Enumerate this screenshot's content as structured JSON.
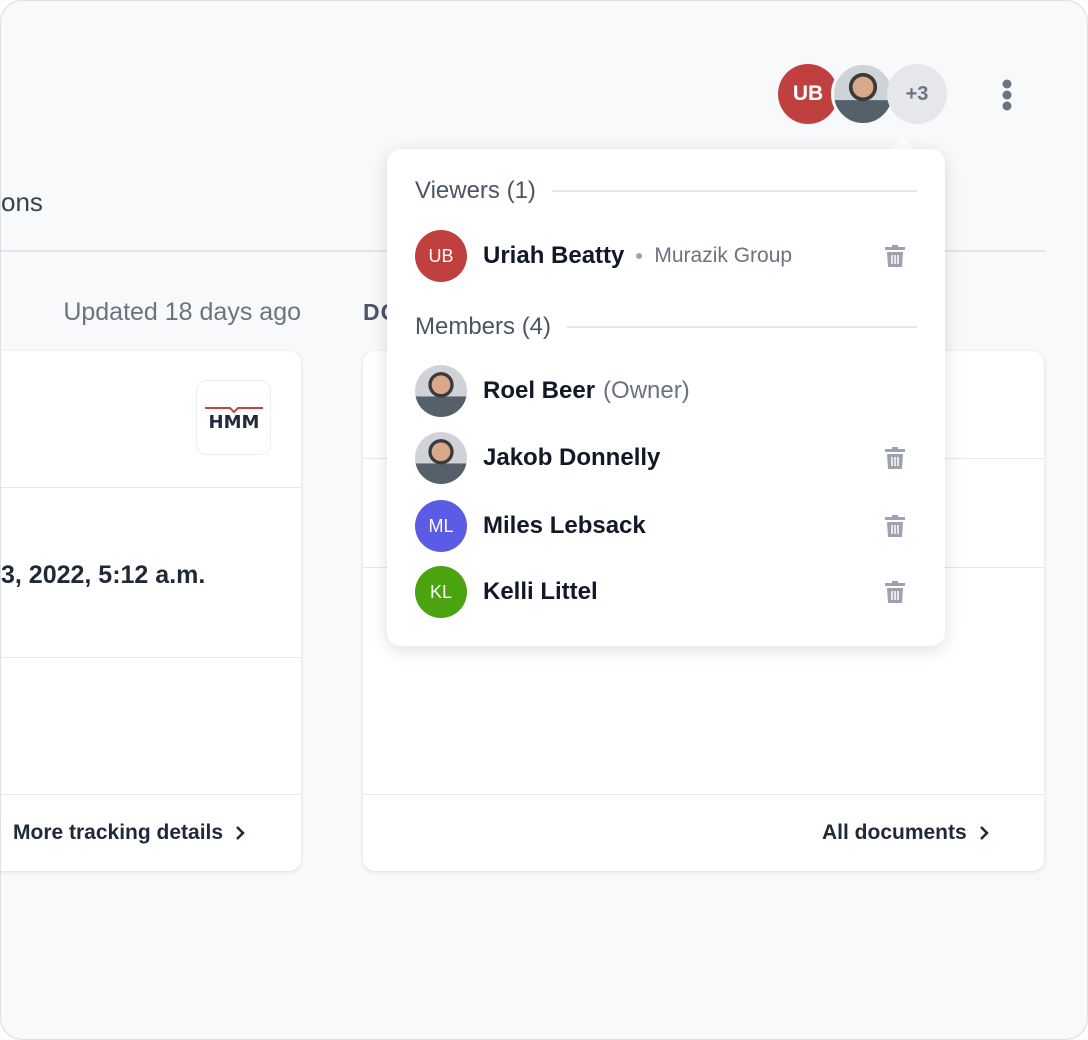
{
  "page": {
    "tab_partial": "ons",
    "updated": "Updated 18 days ago",
    "documents_label": "DOCUMENTS"
  },
  "shipment_card": {
    "logo": "HMM",
    "date": "3, 2022, 5:12 a.m.",
    "footer_link": "More tracking details"
  },
  "documents_card": {
    "footer_link": "All documents"
  },
  "header": {
    "avatars": [
      {
        "initials": "UB",
        "color": "#c0403f"
      },
      {
        "type": "photo"
      }
    ],
    "more_count": "+3"
  },
  "popover": {
    "viewers_title": "Viewers (1)",
    "viewers": [
      {
        "initials": "UB",
        "name": "Uriah Beatty",
        "org": "Murazik Group",
        "color": "#c0403f"
      }
    ],
    "members_title": "Members (4)",
    "members": [
      {
        "name": "Roel Beer",
        "role": "(Owner)",
        "photo": true
      },
      {
        "name": "Jakob Donnelly",
        "photo": true
      },
      {
        "initials": "ML",
        "name": "Miles Lebsack",
        "color": "#5b5be6"
      },
      {
        "initials": "KL",
        "name": "Kelli Littel",
        "color": "#4aa30f"
      }
    ]
  }
}
